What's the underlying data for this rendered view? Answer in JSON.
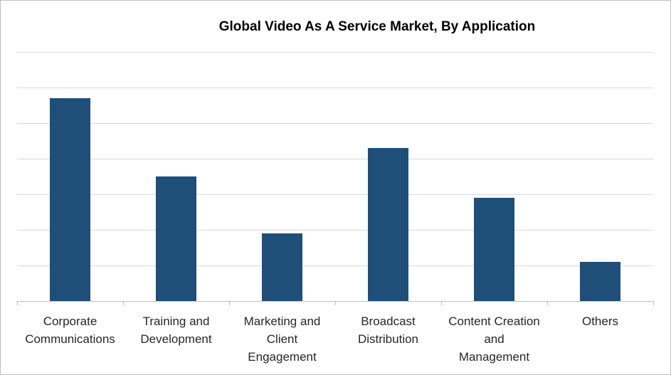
{
  "chart_data": {
    "type": "bar",
    "title": "Global Video As A Service Market, By Application",
    "categories": [
      "Corporate Communications",
      "Training and Development",
      "Marketing and Client Engagement",
      "Broadcast Distribution",
      "Content Creation and Management",
      "Others"
    ],
    "category_label_lines": [
      [
        "Corporate",
        "Communications"
      ],
      [
        "Training and",
        "Development"
      ],
      [
        "Marketing and",
        "Client",
        "Engagement"
      ],
      [
        "Broadcast",
        "Distribution"
      ],
      [
        "Content Creation",
        "and",
        "Management"
      ],
      [
        "Others"
      ]
    ],
    "values": [
      5.7,
      3.5,
      1.9,
      4.3,
      2.9,
      1.1
    ],
    "ylim": [
      0,
      7
    ],
    "y_gridline_step": 1,
    "y_tick_labels_shown": false,
    "grid": true,
    "legend": "none",
    "xlabel": "",
    "ylabel": "",
    "colors": {
      "bar": "#1f4e79",
      "grid": "#d9d9d9",
      "axis": "#bfbfbf",
      "text": "#262626"
    }
  }
}
